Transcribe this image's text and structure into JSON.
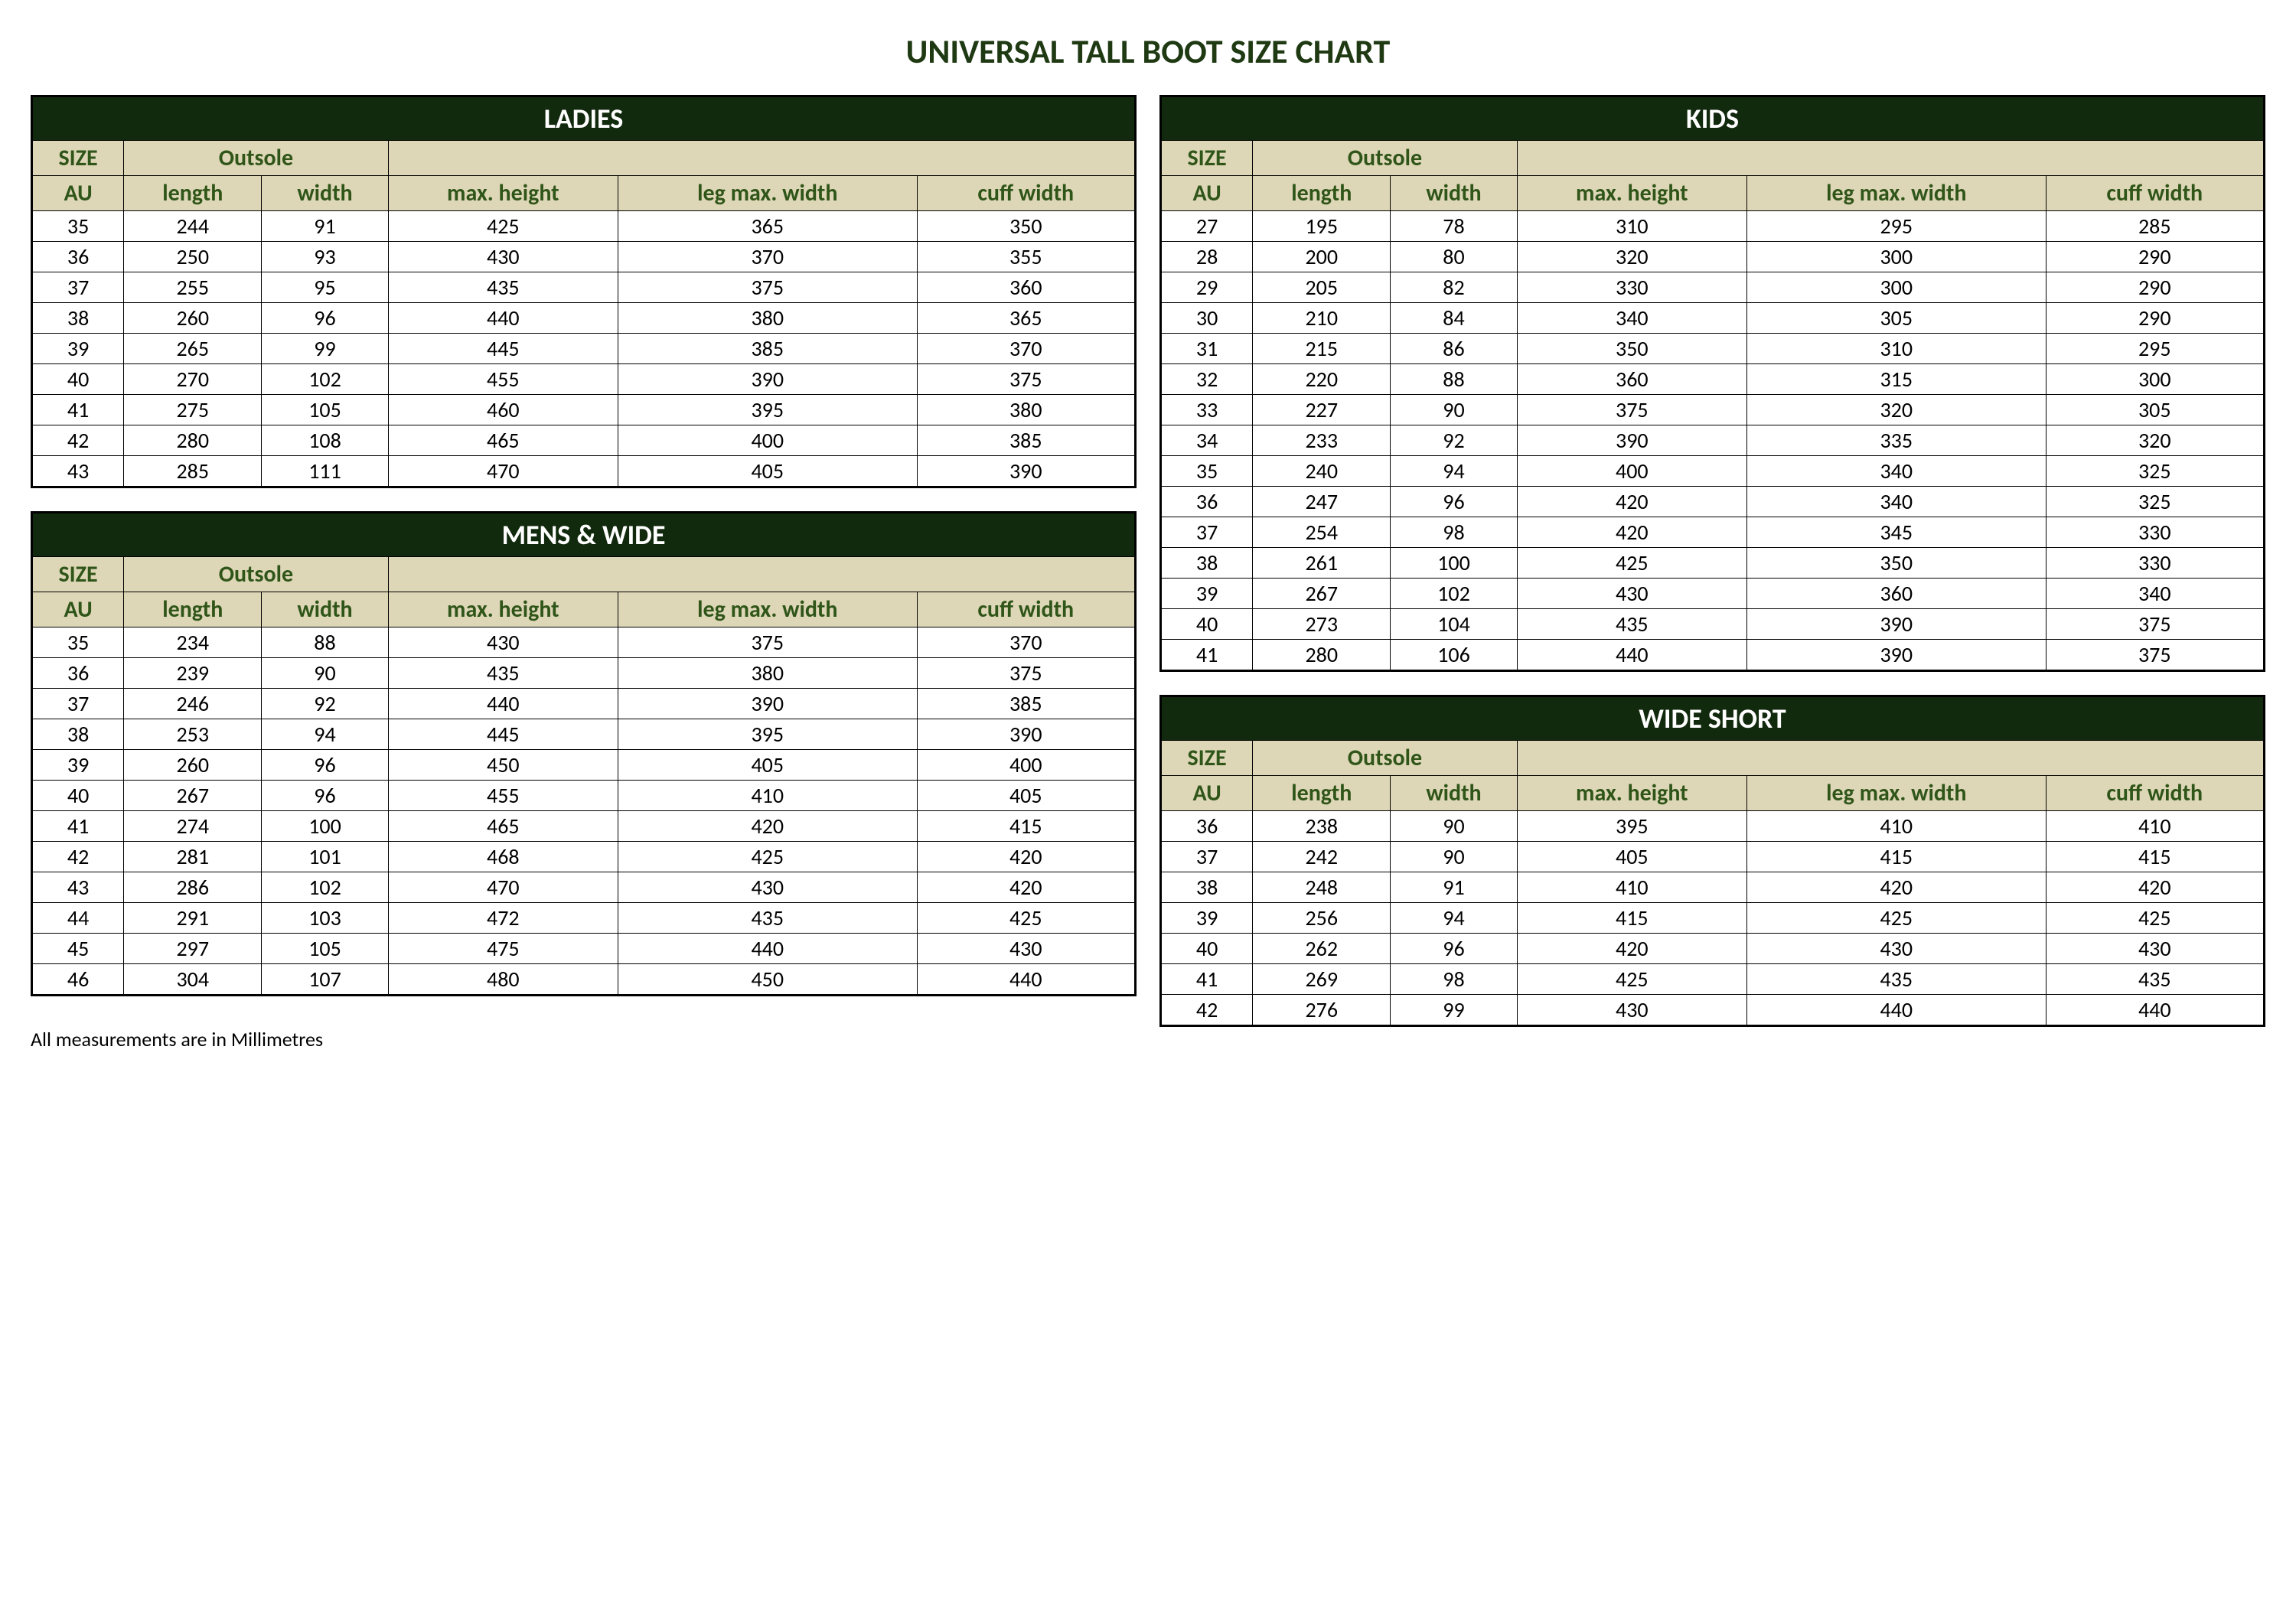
{
  "title": "UNIVERSAL TALL BOOT SIZE CHART",
  "footnote": "All measurements are in Millimetres",
  "headers": {
    "size": "SIZE",
    "outsole": "Outsole",
    "au": "AU",
    "length": "length",
    "width": "width",
    "max_height": "max. height",
    "leg_max_width": "leg max. width",
    "cuff_width": "cuff width"
  },
  "colors": {
    "title_text": "#1f3a13",
    "table_title_bg": "#11290d",
    "table_title_text": "#ffffff",
    "header_bg": "#ded7b7",
    "header_text": "#2f5519",
    "border": "#000000",
    "background": "#ffffff"
  },
  "tables": {
    "ladies": {
      "title": "LADIES",
      "rows": [
        [
          35,
          244,
          91,
          425,
          365,
          350
        ],
        [
          36,
          250,
          93,
          430,
          370,
          355
        ],
        [
          37,
          255,
          95,
          435,
          375,
          360
        ],
        [
          38,
          260,
          96,
          440,
          380,
          365
        ],
        [
          39,
          265,
          99,
          445,
          385,
          370
        ],
        [
          40,
          270,
          102,
          455,
          390,
          375
        ],
        [
          41,
          275,
          105,
          460,
          395,
          380
        ],
        [
          42,
          280,
          108,
          465,
          400,
          385
        ],
        [
          43,
          285,
          111,
          470,
          405,
          390
        ]
      ]
    },
    "mens": {
      "title": "MENS & WIDE",
      "rows": [
        [
          35,
          234,
          88,
          430,
          375,
          370
        ],
        [
          36,
          239,
          90,
          435,
          380,
          375
        ],
        [
          37,
          246,
          92,
          440,
          390,
          385
        ],
        [
          38,
          253,
          94,
          445,
          395,
          390
        ],
        [
          39,
          260,
          96,
          450,
          405,
          400
        ],
        [
          40,
          267,
          96,
          455,
          410,
          405
        ],
        [
          41,
          274,
          100,
          465,
          420,
          415
        ],
        [
          42,
          281,
          101,
          468,
          425,
          420
        ],
        [
          43,
          286,
          102,
          470,
          430,
          420
        ],
        [
          44,
          291,
          103,
          472,
          435,
          425
        ],
        [
          45,
          297,
          105,
          475,
          440,
          430
        ],
        [
          46,
          304,
          107,
          480,
          450,
          440
        ]
      ]
    },
    "kids": {
      "title": "KIDS",
      "rows": [
        [
          27,
          195,
          78,
          310,
          295,
          285
        ],
        [
          28,
          200,
          80,
          320,
          300,
          290
        ],
        [
          29,
          205,
          82,
          330,
          300,
          290
        ],
        [
          30,
          210,
          84,
          340,
          305,
          290
        ],
        [
          31,
          215,
          86,
          350,
          310,
          295
        ],
        [
          32,
          220,
          88,
          360,
          315,
          300
        ],
        [
          33,
          227,
          90,
          375,
          320,
          305
        ],
        [
          34,
          233,
          92,
          390,
          335,
          320
        ],
        [
          35,
          240,
          94,
          400,
          340,
          325
        ],
        [
          36,
          247,
          96,
          420,
          340,
          325
        ],
        [
          37,
          254,
          98,
          420,
          345,
          330
        ],
        [
          38,
          261,
          100,
          425,
          350,
          330
        ],
        [
          39,
          267,
          102,
          430,
          360,
          340
        ],
        [
          40,
          273,
          104,
          435,
          390,
          375
        ],
        [
          41,
          280,
          106,
          440,
          390,
          375
        ]
      ]
    },
    "wideshort": {
      "title": "WIDE SHORT",
      "rows": [
        [
          36,
          238,
          90,
          395,
          410,
          410
        ],
        [
          37,
          242,
          90,
          405,
          415,
          415
        ],
        [
          38,
          248,
          91,
          410,
          420,
          420
        ],
        [
          39,
          256,
          94,
          415,
          425,
          425
        ],
        [
          40,
          262,
          96,
          420,
          430,
          430
        ],
        [
          41,
          269,
          98,
          425,
          435,
          435
        ],
        [
          42,
          276,
          99,
          430,
          440,
          440
        ]
      ]
    }
  }
}
